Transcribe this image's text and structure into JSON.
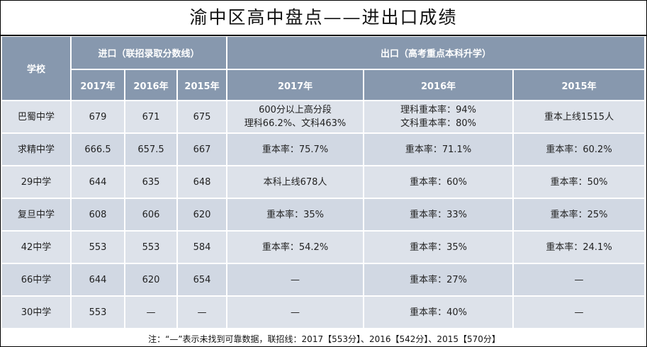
{
  "title": "渝中区高中盘点——进出口成绩",
  "headers": {
    "school": "学校",
    "entry": "进口（联招录取分数线）",
    "exit": "出口（高考重点本科升学）",
    "years": [
      "2017年",
      "2016年",
      "2015年",
      "2017年",
      "2016年",
      "2015年"
    ]
  },
  "rows": [
    {
      "school": "巴蜀中学",
      "e2017": "679",
      "e2016": "671",
      "e2015": "675",
      "x2017": [
        "600分以上高分段",
        "理科66.2%、文科463%"
      ],
      "x2016": [
        "理科重本率：94%",
        "文科重本率：80%"
      ],
      "x2015": [
        "重本上线1515人"
      ]
    },
    {
      "school": "求精中学",
      "e2017": "666.5",
      "e2016": "657.5",
      "e2015": "667",
      "x2017": [
        "重本率：75.7%"
      ],
      "x2016": [
        "重本率：71.1%"
      ],
      "x2015": [
        "重本率：60.2%"
      ]
    },
    {
      "school": "29中学",
      "e2017": "644",
      "e2016": "635",
      "e2015": "648",
      "x2017": [
        "本科上线678人"
      ],
      "x2016": [
        "重本率：60%"
      ],
      "x2015": [
        "重本率：50%"
      ]
    },
    {
      "school": "复旦中学",
      "e2017": "608",
      "e2016": "606",
      "e2015": "620",
      "x2017": [
        "重本率：35%"
      ],
      "x2016": [
        "重本率：33%"
      ],
      "x2015": [
        "重本率：25%"
      ]
    },
    {
      "school": "42中学",
      "e2017": "553",
      "e2016": "553",
      "e2015": "584",
      "x2017": [
        "重本率：54.2%"
      ],
      "x2016": [
        "重本率：35%"
      ],
      "x2015": [
        "重本率：24.1%"
      ]
    },
    {
      "school": "66中学",
      "e2017": "644",
      "e2016": "620",
      "e2015": "654",
      "x2017": [
        "—"
      ],
      "x2016": [
        "重本率：27%"
      ],
      "x2015": [
        "—"
      ]
    },
    {
      "school": "30中学",
      "e2017": "553",
      "e2016": "—",
      "e2015": "—",
      "x2017": [
        "—"
      ],
      "x2016": [
        "重本率：40%"
      ],
      "x2015": [
        "—"
      ]
    }
  ],
  "note": "注：“—”表示未找到可靠数据，联招线：2017【553分】、2016【542分】、2015【570分】",
  "colors": {
    "header_bg": "#8798ae",
    "row_odd": "#dde2ea",
    "row_even": "#d1d8e3"
  }
}
